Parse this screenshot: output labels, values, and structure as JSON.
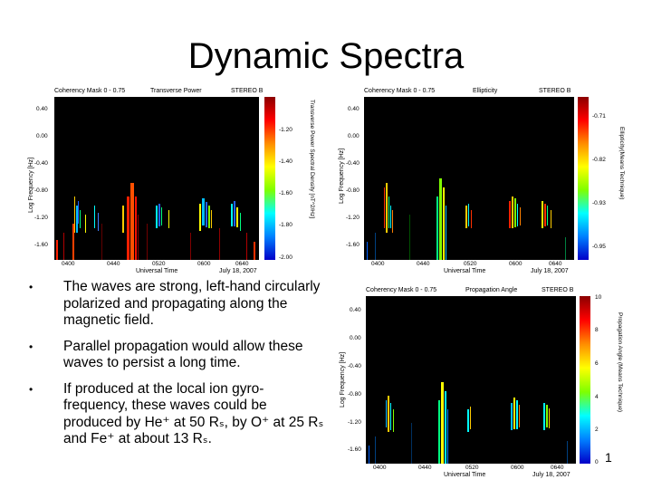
{
  "slide": {
    "title": "Dynamic Spectra",
    "page_number": "1"
  },
  "panels": [
    {
      "id": "transverse-power",
      "mask": "Coherency Mask 0 - 0.75",
      "quantity": "Transverse Power",
      "spacecraft": "STEREO B",
      "y_ticks": [
        "0.40",
        "0.00",
        "-0.40",
        "-0.80",
        "-1.20",
        "-1.60"
      ],
      "x_ticks": [
        "0400",
        "0440",
        "0520",
        "0600",
        "0640"
      ],
      "y_label": "Log Frequency [Hz]",
      "x_label": "Universal Time",
      "date": "July 18, 2007",
      "cbar_ticks": [
        "-1.20",
        "-1.40",
        "-1.60",
        "-1.80",
        "-2.00"
      ],
      "cbar_label": "Transverse Power Spectral Density [nT^2/Hz]"
    },
    {
      "id": "ellipticity",
      "mask": "Coherency Mask 0 - 0.75",
      "quantity": "Ellipticity",
      "spacecraft": "STEREO B",
      "y_ticks": [
        "0.40",
        "0.00",
        "-0.40",
        "-0.80",
        "-1.20",
        "-1.60"
      ],
      "x_ticks": [
        "0400",
        "0440",
        "0520",
        "0600",
        "0640"
      ],
      "y_label": "Log Frequency [Hz]",
      "x_label": "Universal Time",
      "date": "July 18, 2007",
      "cbar_ticks": [
        "-0.71",
        "-0.82",
        "-0.93",
        "-0.95"
      ],
      "cbar_label": "Ellipticity(Means Technique)"
    },
    {
      "id": "propagation-angle",
      "mask": "Coherency Mask 0 - 0.75",
      "quantity": "Propagation Angle",
      "spacecraft": "STEREO B",
      "y_ticks": [
        "0.40",
        "0.00",
        "-0.40",
        "-0.80",
        "-1.20",
        "-1.60"
      ],
      "x_ticks": [
        "0400",
        "0440",
        "0520",
        "0600",
        "0640"
      ],
      "y_label": "Log Frequency [Hz]",
      "x_label": "Universal Time",
      "date": "July 18, 2007",
      "cbar_ticks": [
        "10",
        "8",
        "6",
        "4",
        "2",
        "0"
      ],
      "cbar_label": "Propagation Angle (Means Technique)"
    }
  ],
  "bullets": [
    "The waves are strong, left-hand circularly polarized and propagating along the magnetic field.",
    "Parallel propagation would allow these waves to persist a long time.",
    "If produced at the local ion gyro-frequency, these waves could be produced by He⁺ at 50 Rₛ, by O⁺ at 25 Rₛ and Fe⁺ at about 13 Rₛ."
  ],
  "colors": {
    "plot_background": "#000000",
    "colormap": [
      "#8b0000",
      "#ff0000",
      "#ff8c00",
      "#ffff00",
      "#7fff00",
      "#00ffff",
      "#0080ff",
      "#0000c8"
    ]
  }
}
